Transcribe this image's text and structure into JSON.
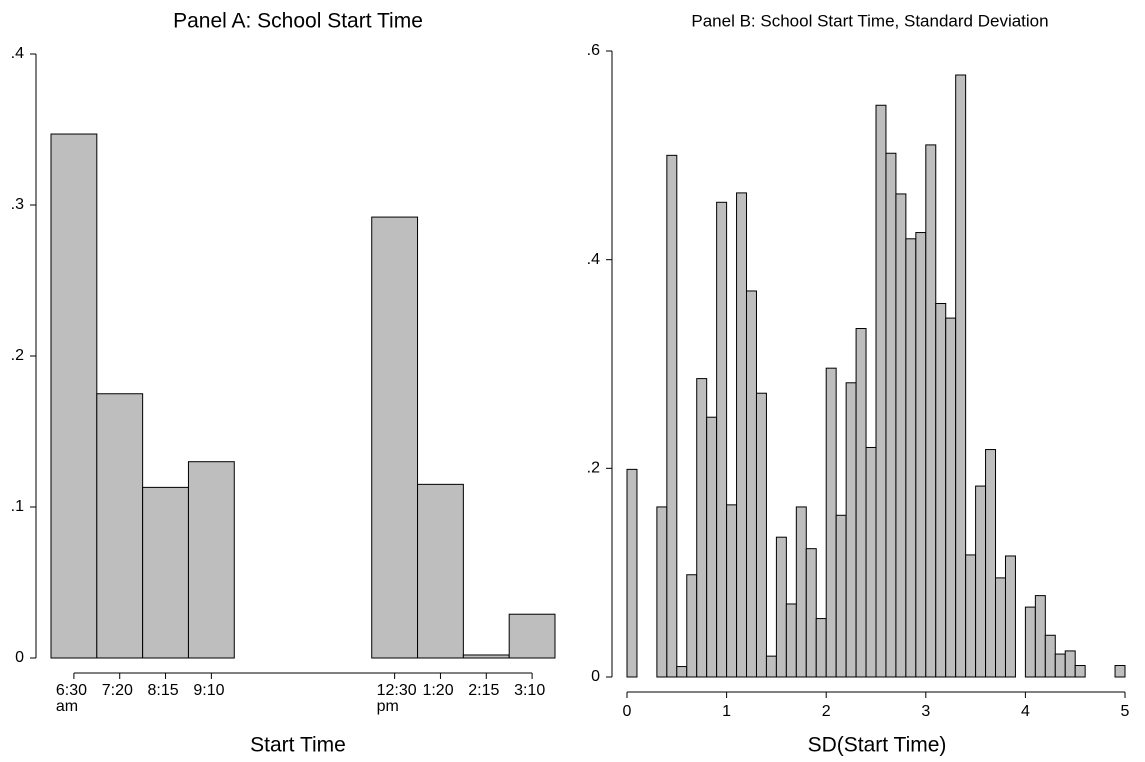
{
  "chart_data": [
    {
      "type": "bar",
      "title": "Panel A: School Start Time",
      "x_label": "Start Time",
      "categories": [
        "6:30 am",
        "7:20",
        "8:15",
        "9:10",
        null,
        null,
        null,
        "12:30 pm",
        "1:20",
        "2:15",
        "3:10"
      ],
      "values": [
        0.347,
        0.175,
        0.113,
        0.13,
        null,
        null,
        null,
        0.292,
        0.115,
        0.002,
        0.029
      ],
      "color": "#bebebe",
      "ylim": [
        0,
        0.4
      ],
      "yticks": [
        0,
        {
          "value": 0.1,
          "label": ".1"
        },
        {
          "value": 0.2,
          "label": ".2"
        },
        {
          "value": 0.3,
          "label": ".3"
        },
        {
          "value": 0.4,
          "label": ".4"
        }
      ]
    },
    {
      "type": "histogram",
      "title": "Panel B: School Start Time, Standard Deviation",
      "x_label": "SD(Start Time)",
      "bins": [
        0,
        0.1,
        0.2,
        0.3,
        0.4,
        0.5,
        0.6,
        0.7,
        0.8,
        0.9,
        1,
        1.1,
        1.2,
        1.3,
        1.4,
        1.5,
        1.6,
        1.7,
        1.8,
        1.9,
        2,
        2.1,
        2.2,
        2.3,
        2.4,
        2.5,
        2.6,
        2.7,
        2.8,
        2.9,
        3,
        3.1,
        3.2,
        3.3,
        3.4,
        3.5,
        3.6,
        3.7,
        3.8,
        3.9,
        4,
        4.1,
        4.2,
        4.3,
        4.4,
        4.5,
        4.6,
        4.7,
        4.8,
        4.9,
        5
      ],
      "values": [
        0.199,
        0,
        0,
        0.163,
        0.5,
        0.01,
        0.098,
        0.286,
        0.249,
        0.455,
        0.165,
        0.464,
        0.37,
        0.272,
        0.02,
        0.134,
        0.07,
        0.163,
        0.123,
        0.056,
        0.296,
        0.155,
        0.282,
        0.334,
        0.22,
        0.548,
        0.502,
        0.463,
        0.42,
        0.426,
        0.51,
        0.358,
        0.344,
        0.577,
        0.117,
        0.183,
        0.218,
        0.095,
        0.116,
        0,
        0.067,
        0.078,
        0.04,
        0.022,
        0.025,
        0.011,
        0,
        0,
        0,
        0.011
      ],
      "color": "#bebebe",
      "xlim": [
        0,
        5
      ],
      "xticks": [
        0,
        1,
        2,
        3,
        4,
        5
      ],
      "ylim": [
        0,
        0.6
      ],
      "yticks": [
        0,
        {
          "value": 0.2,
          "label": ".2"
        },
        {
          "value": 0.4,
          "label": ".4"
        },
        {
          "value": 0.6,
          "label": ".6"
        }
      ]
    }
  ]
}
